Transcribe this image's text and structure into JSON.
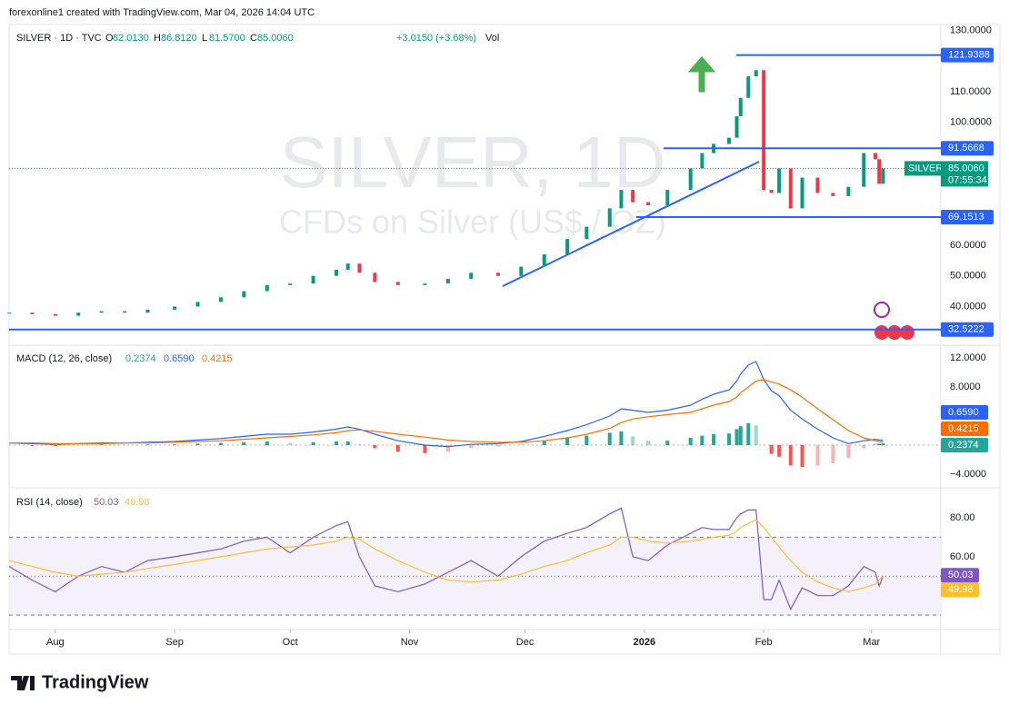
{
  "header": {
    "credit": "forexonline1 created with TradingView.com, Mar 04, 2026 14:04 UTC",
    "symbol": "SILVER · 1D · TVC",
    "ohlc": [
      {
        "key": "O",
        "value": "82.0130"
      },
      {
        "key": "H",
        "value": "86.8120"
      },
      {
        "key": "L",
        "value": "81.5700"
      },
      {
        "key": "C",
        "value": "85.0060"
      }
    ],
    "change": "+3.0150 (+3.68%)",
    "volume": "Vol"
  },
  "watermark": {
    "line1": "SILVER, 1D",
    "line2": "CFDs on Silver (US$ / OZ)"
  },
  "footer": {
    "brand": "TradingView"
  },
  "chart_data": [
    {
      "type": "candlestick",
      "x": [
        0,
        6,
        12,
        18,
        24,
        30,
        36,
        43,
        49,
        55,
        61,
        67,
        73,
        79,
        85,
        88,
        91,
        95,
        101,
        108,
        114,
        120,
        127,
        133,
        139,
        145,
        150,
        156,
        159,
        162,
        166,
        171,
        177,
        180,
        183,
        187,
        189,
        190,
        192,
        194,
        196,
        198,
        200,
        203,
        206,
        210,
        214,
        218,
        222,
        225,
        226,
        227
      ],
      "series": [
        {
          "name": "SILVER",
          "values": [
            38,
            37.5,
            37,
            38,
            38.5,
            38,
            39,
            40,
            41.5,
            43,
            45,
            47,
            47.5,
            50,
            52,
            54,
            51,
            48,
            47,
            47.5,
            49,
            51,
            50,
            53,
            57,
            62,
            66,
            72,
            78,
            74,
            73,
            78,
            85,
            90,
            93,
            95,
            102,
            108,
            115,
            117,
            78,
            77,
            85,
            72,
            82,
            77,
            76,
            79,
            90,
            88,
            80,
            85.006
          ],
          "last_value_label": "85.0060",
          "countdown": "07:55:34",
          "up_color": "#089981",
          "down_color": "#f23645"
        }
      ],
      "xlim": [
        0,
        242
      ],
      "xticks": [
        {
          "value": 12,
          "label": "Aug"
        },
        {
          "value": 43,
          "label": "Sep"
        },
        {
          "value": 73,
          "label": "Oct"
        },
        {
          "value": 104,
          "label": "Nov"
        },
        {
          "value": 134,
          "label": "Dec"
        },
        {
          "value": 165,
          "label": "2026"
        },
        {
          "value": 196,
          "label": "Feb"
        },
        {
          "value": 224,
          "label": "Mar"
        }
      ],
      "ylim": [
        28,
        131
      ],
      "yticks": [
        {
          "value": 130,
          "label": "130.0000"
        },
        {
          "value": 110,
          "label": "110.0000"
        },
        {
          "value": 100,
          "label": "100.0000"
        },
        {
          "value": 60,
          "label": "60.0000"
        },
        {
          "value": 50,
          "label": "50.0000"
        },
        {
          "value": 40,
          "label": "40.0000"
        }
      ],
      "levels": [
        {
          "value": 121.9388,
          "label": "121.9388"
        },
        {
          "value": 91.5668,
          "label": "91.5668"
        },
        {
          "value": 69.1513,
          "label": "69.1513"
        },
        {
          "value": 32.5222,
          "label": "32.5222"
        }
      ],
      "level_color": "#2962ff"
    },
    {
      "type": "macd",
      "title": "MACD (12, 26, close)",
      "series": [
        {
          "kind": "histogram",
          "color": "#26a69a",
          "negative_color": "#ff5252",
          "last_value_label": "0.2374",
          "values": [
            0,
            -0.1,
            -0.1,
            0,
            0.1,
            0,
            0.1,
            0.1,
            0.2,
            0.3,
            0.4,
            0.5,
            0.3,
            0.4,
            0.5,
            0.5,
            0.1,
            -0.4,
            -0.9,
            -1.1,
            -0.9,
            -0.4,
            -0.2,
            0.1,
            0.6,
            1.0,
            1.3,
            1.7,
            1.9,
            1.2,
            0.6,
            0.6,
            1.0,
            1.3,
            1.5,
            1.6,
            2.2,
            2.6,
            3.0,
            2.7,
            0,
            -1.2,
            -1.6,
            -2.8,
            -3.0,
            -2.8,
            -2.5,
            -1.8,
            -0.4,
            0.2,
            0.2,
            0.2374
          ]
        },
        {
          "kind": "line",
          "color": "#2962ff",
          "last_value_label": "0.6590",
          "values": [
            0.3,
            0.2,
            0.1,
            0.2,
            0.3,
            0.3,
            0.4,
            0.5,
            0.7,
            0.9,
            1.2,
            1.5,
            1.5,
            1.8,
            2.2,
            2.5,
            2.2,
            1.5,
            0.6,
            0.0,
            -0.2,
            0.1,
            0.2,
            0.5,
            1.2,
            2.0,
            2.8,
            4.0,
            5.0,
            4.8,
            4.5,
            4.8,
            5.5,
            6.3,
            7.0,
            7.6,
            8.8,
            9.8,
            11.0,
            11.5,
            9.0,
            7.5,
            6.8,
            4.8,
            3.6,
            2.2,
            1.0,
            0.2,
            0.6,
            0.8,
            0.7,
            0.659
          ]
        },
        {
          "kind": "line",
          "color": "#ff6d00",
          "last_value_label": "0.4215",
          "values": [
            0.3,
            0.3,
            0.2,
            0.2,
            0.2,
            0.3,
            0.3,
            0.4,
            0.5,
            0.6,
            0.8,
            1.0,
            1.2,
            1.4,
            1.7,
            2.0,
            2.1,
            1.9,
            1.5,
            1.1,
            0.7,
            0.5,
            0.4,
            0.4,
            0.6,
            1.0,
            1.5,
            2.3,
            3.1,
            3.6,
            3.9,
            4.2,
            4.5,
            5.0,
            5.5,
            6.0,
            6.6,
            7.2,
            8.0,
            8.8,
            9.0,
            8.7,
            8.4,
            7.6,
            6.6,
            5.0,
            3.5,
            2.0,
            1.0,
            0.6,
            0.5,
            0.4215
          ]
        }
      ],
      "ylim": [
        -5.5,
        13.5
      ],
      "yticks": [
        {
          "value": 12,
          "label": "12.0000"
        },
        {
          "value": 8,
          "label": "8.0000"
        },
        {
          "value": -4,
          "label": "−4.0000"
        }
      ]
    },
    {
      "type": "rsi",
      "title": "RSI (14, close)",
      "series": [
        {
          "kind": "line",
          "color": "#7e57c2",
          "last_value_label": "50.03",
          "values": [
            55,
            48,
            42,
            50,
            55,
            52,
            58,
            60,
            62,
            64,
            68,
            70,
            62,
            70,
            76,
            78,
            60,
            45,
            42,
            46,
            52,
            58,
            50,
            60,
            68,
            72,
            75,
            82,
            85,
            60,
            58,
            66,
            72,
            75,
            74,
            74,
            80,
            82,
            84,
            84,
            38,
            38,
            48,
            33,
            44,
            40,
            40,
            45,
            55,
            52,
            45,
            50.03
          ]
        },
        {
          "kind": "line",
          "color": "#fbc02d",
          "last_value_label": "49.98",
          "values": [
            58,
            55,
            52,
            50,
            51,
            52,
            54,
            56,
            58,
            60,
            62,
            64,
            65,
            66,
            68,
            70,
            69,
            64,
            58,
            52,
            48,
            47,
            48,
            51,
            55,
            58,
            62,
            66,
            70,
            70,
            68,
            67,
            68,
            69,
            70,
            71,
            73,
            75,
            77,
            79,
            75,
            70,
            65,
            58,
            52,
            47,
            44,
            42,
            44,
            46,
            48,
            49.98
          ]
        }
      ],
      "ylim": [
        24,
        94
      ],
      "yticks": [
        {
          "value": 80,
          "label": "80.00"
        },
        {
          "value": 60,
          "label": "60.00"
        }
      ],
      "bands": [
        70,
        50,
        30
      ],
      "band_fill": "#ede7f6"
    }
  ]
}
